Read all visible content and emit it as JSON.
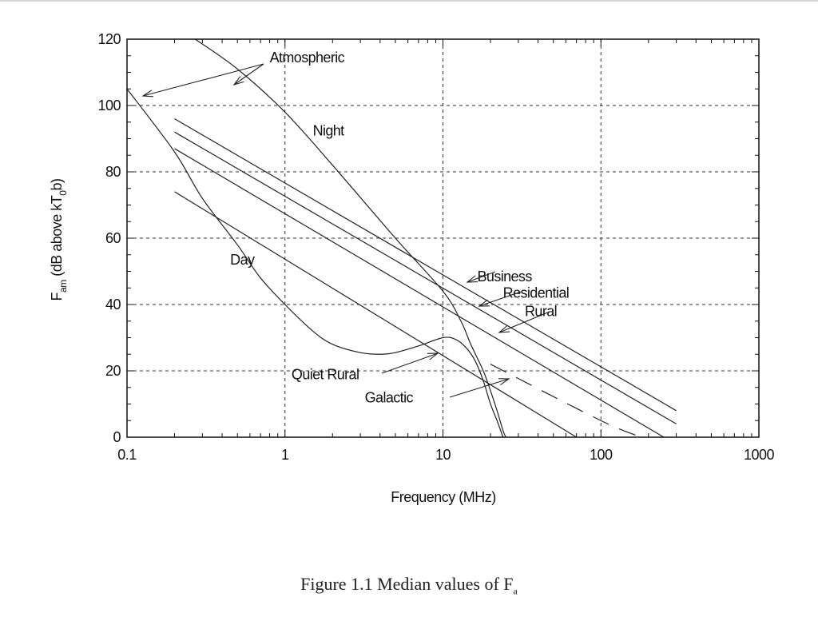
{
  "chart_data": {
    "type": "line",
    "x_scale": "log",
    "xlim": [
      0.1,
      1000
    ],
    "ylim": [
      0,
      120
    ],
    "x_ticks": [
      0.1,
      1,
      10,
      100,
      1000
    ],
    "x_tick_labels": [
      "0.1",
      "1",
      "10",
      "100",
      "1000"
    ],
    "y_ticks": [
      0,
      20,
      40,
      60,
      80,
      100,
      120
    ],
    "y_tick_labels": [
      "0",
      "20",
      "40",
      "60",
      "80",
      "100",
      "120"
    ],
    "grid": true,
    "xlabel": "Frequency (MHz)",
    "ylabel_main": "F",
    "ylabel_sub": "am",
    "ylabel_rest": " (dB above kT",
    "ylabel_sub2": "0",
    "ylabel_end": "b)",
    "series": [
      {
        "name": "Atmospheric Night",
        "style": "solid",
        "points": [
          [
            0.27,
            120
          ],
          [
            0.5,
            111
          ],
          [
            1,
            98
          ],
          [
            2,
            82
          ],
          [
            5,
            60
          ],
          [
            10,
            44
          ],
          [
            13,
            35
          ],
          [
            15,
            28
          ],
          [
            18,
            20
          ],
          [
            20,
            14
          ],
          [
            22,
            8
          ],
          [
            24,
            2
          ],
          [
            25,
            0
          ]
        ]
      },
      {
        "name": "Atmospheric Day",
        "style": "solid",
        "points": [
          [
            0.1,
            105
          ],
          [
            0.2,
            86
          ],
          [
            0.3,
            72
          ],
          [
            0.5,
            58
          ],
          [
            0.7,
            48
          ],
          [
            1,
            40
          ],
          [
            1.5,
            32
          ],
          [
            2,
            28
          ],
          [
            3,
            25.5
          ],
          [
            4,
            25
          ],
          [
            5,
            25.5
          ],
          [
            7,
            27.5
          ],
          [
            10,
            30
          ],
          [
            12,
            29.5
          ],
          [
            14,
            27
          ],
          [
            16,
            23
          ],
          [
            18,
            17
          ],
          [
            20,
            10
          ],
          [
            22,
            5
          ],
          [
            24,
            0
          ]
        ]
      },
      {
        "name": "Business",
        "style": "solid",
        "points": [
          [
            0.2,
            96
          ],
          [
            300,
            8
          ]
        ]
      },
      {
        "name": "Residential",
        "style": "solid",
        "points": [
          [
            0.2,
            92
          ],
          [
            300,
            4
          ]
        ]
      },
      {
        "name": "Rural",
        "style": "solid",
        "points": [
          [
            0.2,
            87
          ],
          [
            250,
            0
          ]
        ]
      },
      {
        "name": "Quiet Rural",
        "style": "solid",
        "points": [
          [
            0.2,
            74
          ],
          [
            70,
            0
          ]
        ]
      },
      {
        "name": "Galactic",
        "style": "dashed",
        "points": [
          [
            20,
            22
          ],
          [
            100,
            5
          ],
          [
            180,
            0
          ]
        ]
      }
    ],
    "annotations": [
      {
        "label": "Atmospheric",
        "at": [
          0.8,
          113
        ]
      },
      {
        "label": "Night",
        "at": [
          1.5,
          91
        ]
      },
      {
        "label": "Day",
        "at": [
          0.45,
          52
        ]
      },
      {
        "label": "Business",
        "at": [
          16.5,
          47
        ]
      },
      {
        "label": "Residential",
        "at": [
          24,
          42
        ]
      },
      {
        "label": "Rural",
        "at": [
          33,
          36.5
        ]
      },
      {
        "label": "Quiet Rural",
        "at": [
          1.1,
          17.5
        ]
      },
      {
        "label": "Galactic",
        "at": [
          3.2,
          10.5
        ]
      }
    ],
    "caption_main": "Figure 1.1 Median values of F",
    "caption_sub": "a"
  }
}
